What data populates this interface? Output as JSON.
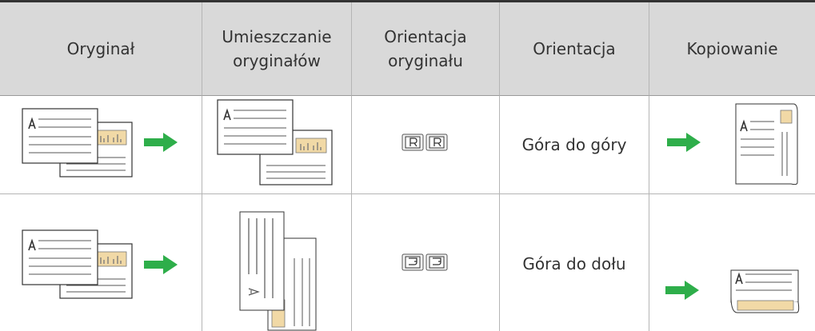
{
  "table": {
    "header": [
      "Oryginał",
      "Umieszczanie oryginałów",
      "Orientacja oryginału",
      "Orientacja",
      "Kopiowanie"
    ],
    "rows": [
      {
        "orientation": "Góra do góry"
      },
      {
        "orientation": "Góra do dołu"
      }
    ]
  }
}
